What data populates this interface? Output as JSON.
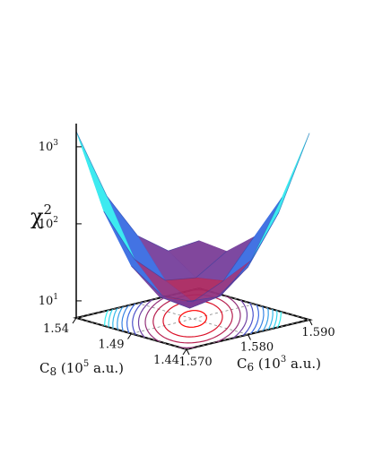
{
  "chart_data": {
    "type": "surface3d",
    "z_label": [
      "χ",
      "2"
    ],
    "x_label": [
      "C",
      "6",
      " (10",
      "3",
      " a.u.)"
    ],
    "y_label": [
      "C",
      "8",
      " (10",
      "5",
      " a.u.)"
    ],
    "x": [
      1.57,
      1.575,
      1.58,
      1.585,
      1.59
    ],
    "y": [
      1.44,
      1.465,
      1.49,
      1.515,
      1.54
    ],
    "z": [
      [
        25,
        23,
        45,
        183,
        1585
      ],
      [
        23,
        13,
        15,
        35,
        183
      ],
      [
        45,
        15,
        10,
        15,
        45
      ],
      [
        183,
        35,
        15,
        13,
        23
      ],
      [
        1585,
        183,
        45,
        23,
        25
      ]
    ],
    "xlim": [
      1.57,
      1.59
    ],
    "ylim": [
      1.44,
      1.54
    ],
    "zlim": [
      6,
      2000
    ],
    "zscale": "log",
    "xticks": [
      {
        "value": 1.57,
        "label": "1.570"
      },
      {
        "value": 1.58,
        "label": "1.580"
      },
      {
        "value": 1.59,
        "label": "1.590"
      }
    ],
    "yticks": [
      1.44,
      1.49,
      1.54
    ],
    "zticks": [
      {
        "value": 10,
        "label": "10",
        "exponent": "1"
      },
      {
        "value": 100,
        "label": "10",
        "exponent": "2"
      },
      {
        "value": 1000,
        "label": "10",
        "exponent": "3"
      }
    ],
    "grid": true,
    "colormap": [
      "#ff0000",
      "#3a5be0",
      "#33f0f0"
    ]
  }
}
